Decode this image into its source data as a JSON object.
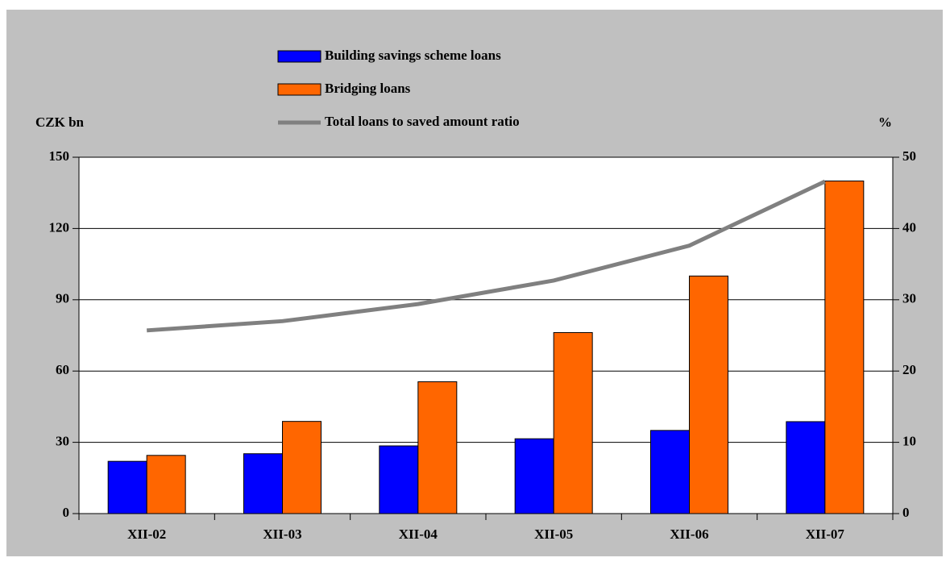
{
  "chart_data": {
    "type": "bar",
    "categories": [
      "XII-02",
      "XII-03",
      "XII-04",
      "XII-05",
      "XII-06",
      "XII-07"
    ],
    "series": [
      {
        "name": "Building savings scheme loans",
        "color": "#0000ff",
        "values": [
          22,
          25.2,
          28.5,
          31.5,
          35,
          38.7
        ]
      },
      {
        "name": "Bridging loans",
        "color": "#ff6600",
        "values": [
          24.5,
          38.8,
          55.5,
          76.2,
          100,
          140
        ]
      },
      {
        "name": "Total loans to saved amount ratio",
        "color": "#808080",
        "type": "line",
        "axis": "y2",
        "values": [
          25.7,
          27,
          29.4,
          32.7,
          37.6,
          46.6
        ]
      }
    ],
    "ylabel": "CZK bn",
    "y2label": "%",
    "ylim": [
      0,
      150
    ],
    "yticks": [
      0,
      30,
      60,
      90,
      120,
      150
    ],
    "y2lim": [
      0,
      50
    ],
    "y2ticks": [
      0,
      10,
      20,
      30,
      40,
      50
    ],
    "grid": true
  }
}
